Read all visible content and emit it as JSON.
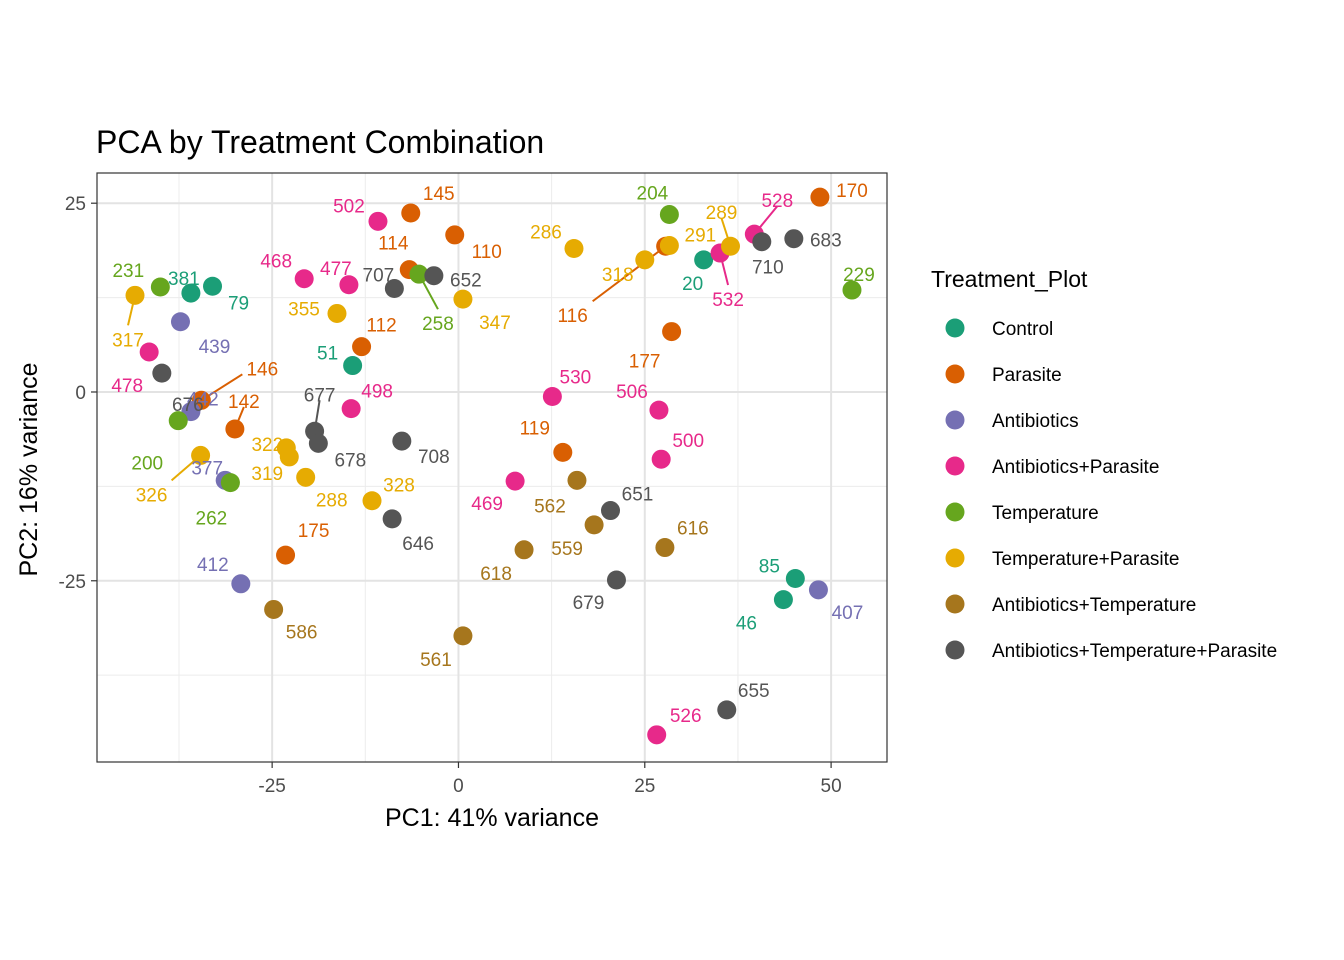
{
  "chart_data": {
    "type": "scatter",
    "title": "PCA by Treatment Combination",
    "xlabel": "PC1: 41% variance",
    "ylabel": "PC2: 16% variance",
    "xlim": [
      -48.5,
      57.5
    ],
    "ylim": [
      -49,
      29
    ],
    "x_ticks": [
      -25,
      0,
      25,
      50
    ],
    "y_ticks": [
      -25,
      0,
      25
    ],
    "x_tick_labels": [
      "-25",
      "0",
      "25",
      "50"
    ],
    "y_tick_labels": [
      "-25",
      "0",
      "25"
    ],
    "grid": true,
    "legend": {
      "title": "Treatment_Plot",
      "placement": "right"
    },
    "series": [
      {
        "name": "Control",
        "color": "#1B9E77",
        "points": [
          {
            "label": "381",
            "x": -35.9,
            "y": 13.1
          },
          {
            "label": "79",
            "x": -33.0,
            "y": 14.0
          },
          {
            "label": "51",
            "x": -14.2,
            "y": 3.5
          },
          {
            "label": "20",
            "x": 32.9,
            "y": 17.5
          },
          {
            "label": "85",
            "x": 45.2,
            "y": -24.7
          },
          {
            "label": "46",
            "x": 43.6,
            "y": -27.5
          }
        ]
      },
      {
        "name": "Parasite",
        "color": "#D95F02",
        "points": [
          {
            "label": "146",
            "x": -34.5,
            "y": -1.1
          },
          {
            "label": "142",
            "x": -30.0,
            "y": -4.9
          },
          {
            "label": "175",
            "x": -23.2,
            "y": -21.6
          },
          {
            "label": "112",
            "x": -13.0,
            "y": 6.0
          },
          {
            "label": "114",
            "x": -6.6,
            "y": 16.2
          },
          {
            "label": "145",
            "x": -6.4,
            "y": 23.7
          },
          {
            "label": "110",
            "x": -0.5,
            "y": 20.8
          },
          {
            "label": "119",
            "x": 14.0,
            "y": -8.0
          },
          {
            "label": "116",
            "x": 27.8,
            "y": 19.3
          },
          {
            "label": "177",
            "x": 28.6,
            "y": 8.0
          },
          {
            "label": "170",
            "x": 48.5,
            "y": 25.8
          }
        ]
      },
      {
        "name": "Antibiotics",
        "color": "#7570B3",
        "points": [
          {
            "label": "439",
            "x": -37.3,
            "y": 9.3
          },
          {
            "label": "442",
            "x": -35.9,
            "y": -2.6
          },
          {
            "label": "377",
            "x": -31.3,
            "y": -11.7
          },
          {
            "label": "412",
            "x": -29.2,
            "y": -25.4
          },
          {
            "label": "407",
            "x": 48.3,
            "y": -26.2
          }
        ]
      },
      {
        "name": "Antibiotics+Parasite",
        "color": "#E7298A",
        "points": [
          {
            "label": "478",
            "x": -41.5,
            "y": 5.3
          },
          {
            "label": "468",
            "x": -20.7,
            "y": 15.0
          },
          {
            "label": "477",
            "x": -14.7,
            "y": 14.2
          },
          {
            "label": "502",
            "x": -10.8,
            "y": 22.6
          },
          {
            "label": "498",
            "x": -14.4,
            "y": -2.2
          },
          {
            "label": "469",
            "x": 7.6,
            "y": -11.8
          },
          {
            "label": "530",
            "x": 12.6,
            "y": -0.6
          },
          {
            "label": "506",
            "x": 26.9,
            "y": -2.4
          },
          {
            "label": "500",
            "x": 27.2,
            "y": -8.9
          },
          {
            "label": "532",
            "x": 35.1,
            "y": 18.4
          },
          {
            "label": "528",
            "x": 39.7,
            "y": 20.9
          },
          {
            "label": "526",
            "x": 26.6,
            "y": -45.4
          }
        ]
      },
      {
        "name": "Temperature",
        "color": "#66A61E",
        "points": [
          {
            "label": "231",
            "x": -40.0,
            "y": 13.9
          },
          {
            "label": "200",
            "x": -37.6,
            "y": -3.8
          },
          {
            "label": "262",
            "x": -30.6,
            "y": -12.0
          },
          {
            "label": "258",
            "x": -5.3,
            "y": 15.6
          },
          {
            "label": "204",
            "x": 28.3,
            "y": 23.5
          },
          {
            "label": "229",
            "x": 52.8,
            "y": 13.5
          }
        ]
      },
      {
        "name": "Temperature+Parasite",
        "color": "#E6AB02",
        "points": [
          {
            "label": "317",
            "x": -43.4,
            "y": 12.8
          },
          {
            "label": "326",
            "x": -34.6,
            "y": -8.4
          },
          {
            "label": "322",
            "x": -23.1,
            "y": -7.4
          },
          {
            "label": "319",
            "x": -22.7,
            "y": -8.6
          },
          {
            "label": "288",
            "x": -20.5,
            "y": -11.3
          },
          {
            "label": "328",
            "x": -11.6,
            "y": -14.4
          },
          {
            "label": "355",
            "x": -16.3,
            "y": 10.4
          },
          {
            "label": "347",
            "x": 0.6,
            "y": 12.3
          },
          {
            "label": "286",
            "x": 15.5,
            "y": 19.0
          },
          {
            "label": "318",
            "x": 25.0,
            "y": 17.5
          },
          {
            "label": "291",
            "x": 28.3,
            "y": 19.4
          },
          {
            "label": "289",
            "x": 36.5,
            "y": 19.3
          }
        ]
      },
      {
        "name": "Antibiotics+Temperature",
        "color": "#A6761D",
        "points": [
          {
            "label": "586",
            "x": -24.8,
            "y": -28.8
          },
          {
            "label": "562",
            "x": 15.9,
            "y": -11.7
          },
          {
            "label": "559",
            "x": 18.2,
            "y": -17.6
          },
          {
            "label": "616",
            "x": 27.7,
            "y": -20.6
          },
          {
            "label": "618",
            "x": 8.8,
            "y": -20.9
          },
          {
            "label": "561",
            "x": 0.6,
            "y": -32.3
          }
        ]
      },
      {
        "name": "Antibiotics+Temperature+Parasite",
        "color": "#555555",
        "points": [
          {
            "label": "676",
            "x": -39.8,
            "y": 2.5
          },
          {
            "label": "677",
            "x": -19.3,
            "y": -5.2
          },
          {
            "label": "678",
            "x": -18.8,
            "y": -6.8
          },
          {
            "label": "707",
            "x": -8.6,
            "y": 13.7
          },
          {
            "label": "652",
            "x": -3.3,
            "y": 15.4
          },
          {
            "label": "708",
            "x": -7.6,
            "y": -6.5
          },
          {
            "label": "646",
            "x": -8.9,
            "y": -16.8
          },
          {
            "label": "651",
            "x": 20.4,
            "y": -15.7
          },
          {
            "label": "679",
            "x": 21.2,
            "y": -24.9
          },
          {
            "label": "710",
            "x": 40.7,
            "y": 19.9
          },
          {
            "label": "683",
            "x": 45.0,
            "y": 20.3
          },
          {
            "label": "655",
            "x": 36.0,
            "y": -42.1
          }
        ]
      }
    ]
  }
}
